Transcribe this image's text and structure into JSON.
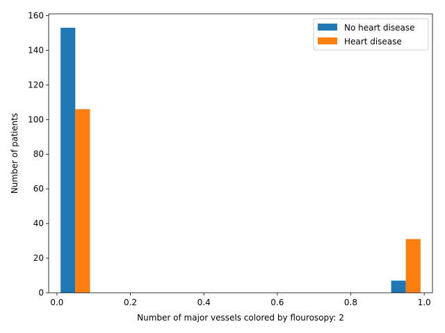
{
  "chart_data": {
    "type": "bar",
    "title": "",
    "xlabel": "Number of major vessels  colored by flourosopy: 2",
    "ylabel": "Number of patients",
    "xlim": [
      -0.0225,
      1.0225
    ],
    "ylim": [
      0,
      161
    ],
    "xticks": [
      "0.0",
      "0.2",
      "0.4",
      "0.6",
      "0.8",
      "1.0"
    ],
    "xtick_values": [
      0,
      0.2,
      0.4,
      0.6,
      0.8,
      1.0
    ],
    "yticks": [
      "0",
      "20",
      "40",
      "60",
      "80",
      "100",
      "120",
      "140",
      "160"
    ],
    "ytick_values": [
      0,
      20,
      40,
      60,
      80,
      100,
      120,
      140,
      160
    ],
    "grid": false,
    "legend_position": "top-right",
    "bins": [
      [
        0.01,
        0.05,
        0.09
      ],
      [
        0.91,
        0.95,
        0.99
      ]
    ],
    "series": [
      {
        "name": "No heart disease",
        "color": "#1f77b4",
        "values": [
          153,
          7
        ]
      },
      {
        "name": "Heart disease",
        "color": "#ff7f0e",
        "values": [
          106,
          31
        ]
      }
    ]
  }
}
